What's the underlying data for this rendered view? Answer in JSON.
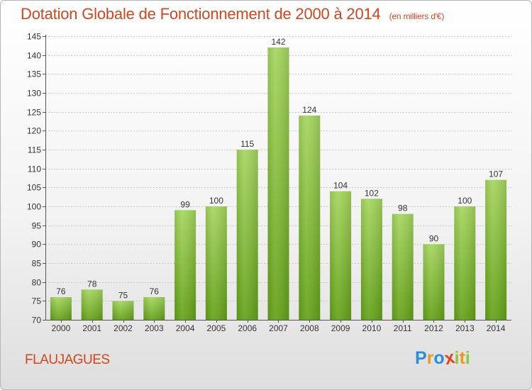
{
  "header": {
    "title": "Dotation Globale de Fonctionnement de 2000 à 2014",
    "subtitle": "(en milliers d'€)"
  },
  "commune": "FLAUJAGUES",
  "brand": {
    "name": "Proxiti",
    "letters": [
      "P",
      "r",
      "o",
      "x",
      "i",
      "t",
      "i"
    ],
    "letter_colors": [
      "#2a8fd6",
      "#f7941d",
      "#2a8fd6",
      "#e8401c",
      "#8dc63f",
      "#f7941d",
      "#8dc63f"
    ]
  },
  "colors": {
    "title": "#d2461e",
    "bar_light": "#a5d65e",
    "bar_dark": "#64a218",
    "grid": "#c9c9c9",
    "text": "#333333"
  },
  "chart_data": {
    "type": "bar",
    "title": "Dotation Globale de Fonctionnement de 2000 à 2014",
    "subtitle": "(en milliers d'€)",
    "xlabel": "",
    "ylabel": "",
    "categories": [
      "2000",
      "2001",
      "2002",
      "2003",
      "2004",
      "2005",
      "2006",
      "2007",
      "2008",
      "2009",
      "2010",
      "2011",
      "2012",
      "2013",
      "2014"
    ],
    "values": [
      76,
      78,
      75,
      76,
      99,
      100,
      115,
      142,
      124,
      104,
      102,
      98,
      90,
      100,
      107
    ],
    "ylim": [
      70,
      145
    ],
    "ytick_step": 5,
    "grid": true
  }
}
